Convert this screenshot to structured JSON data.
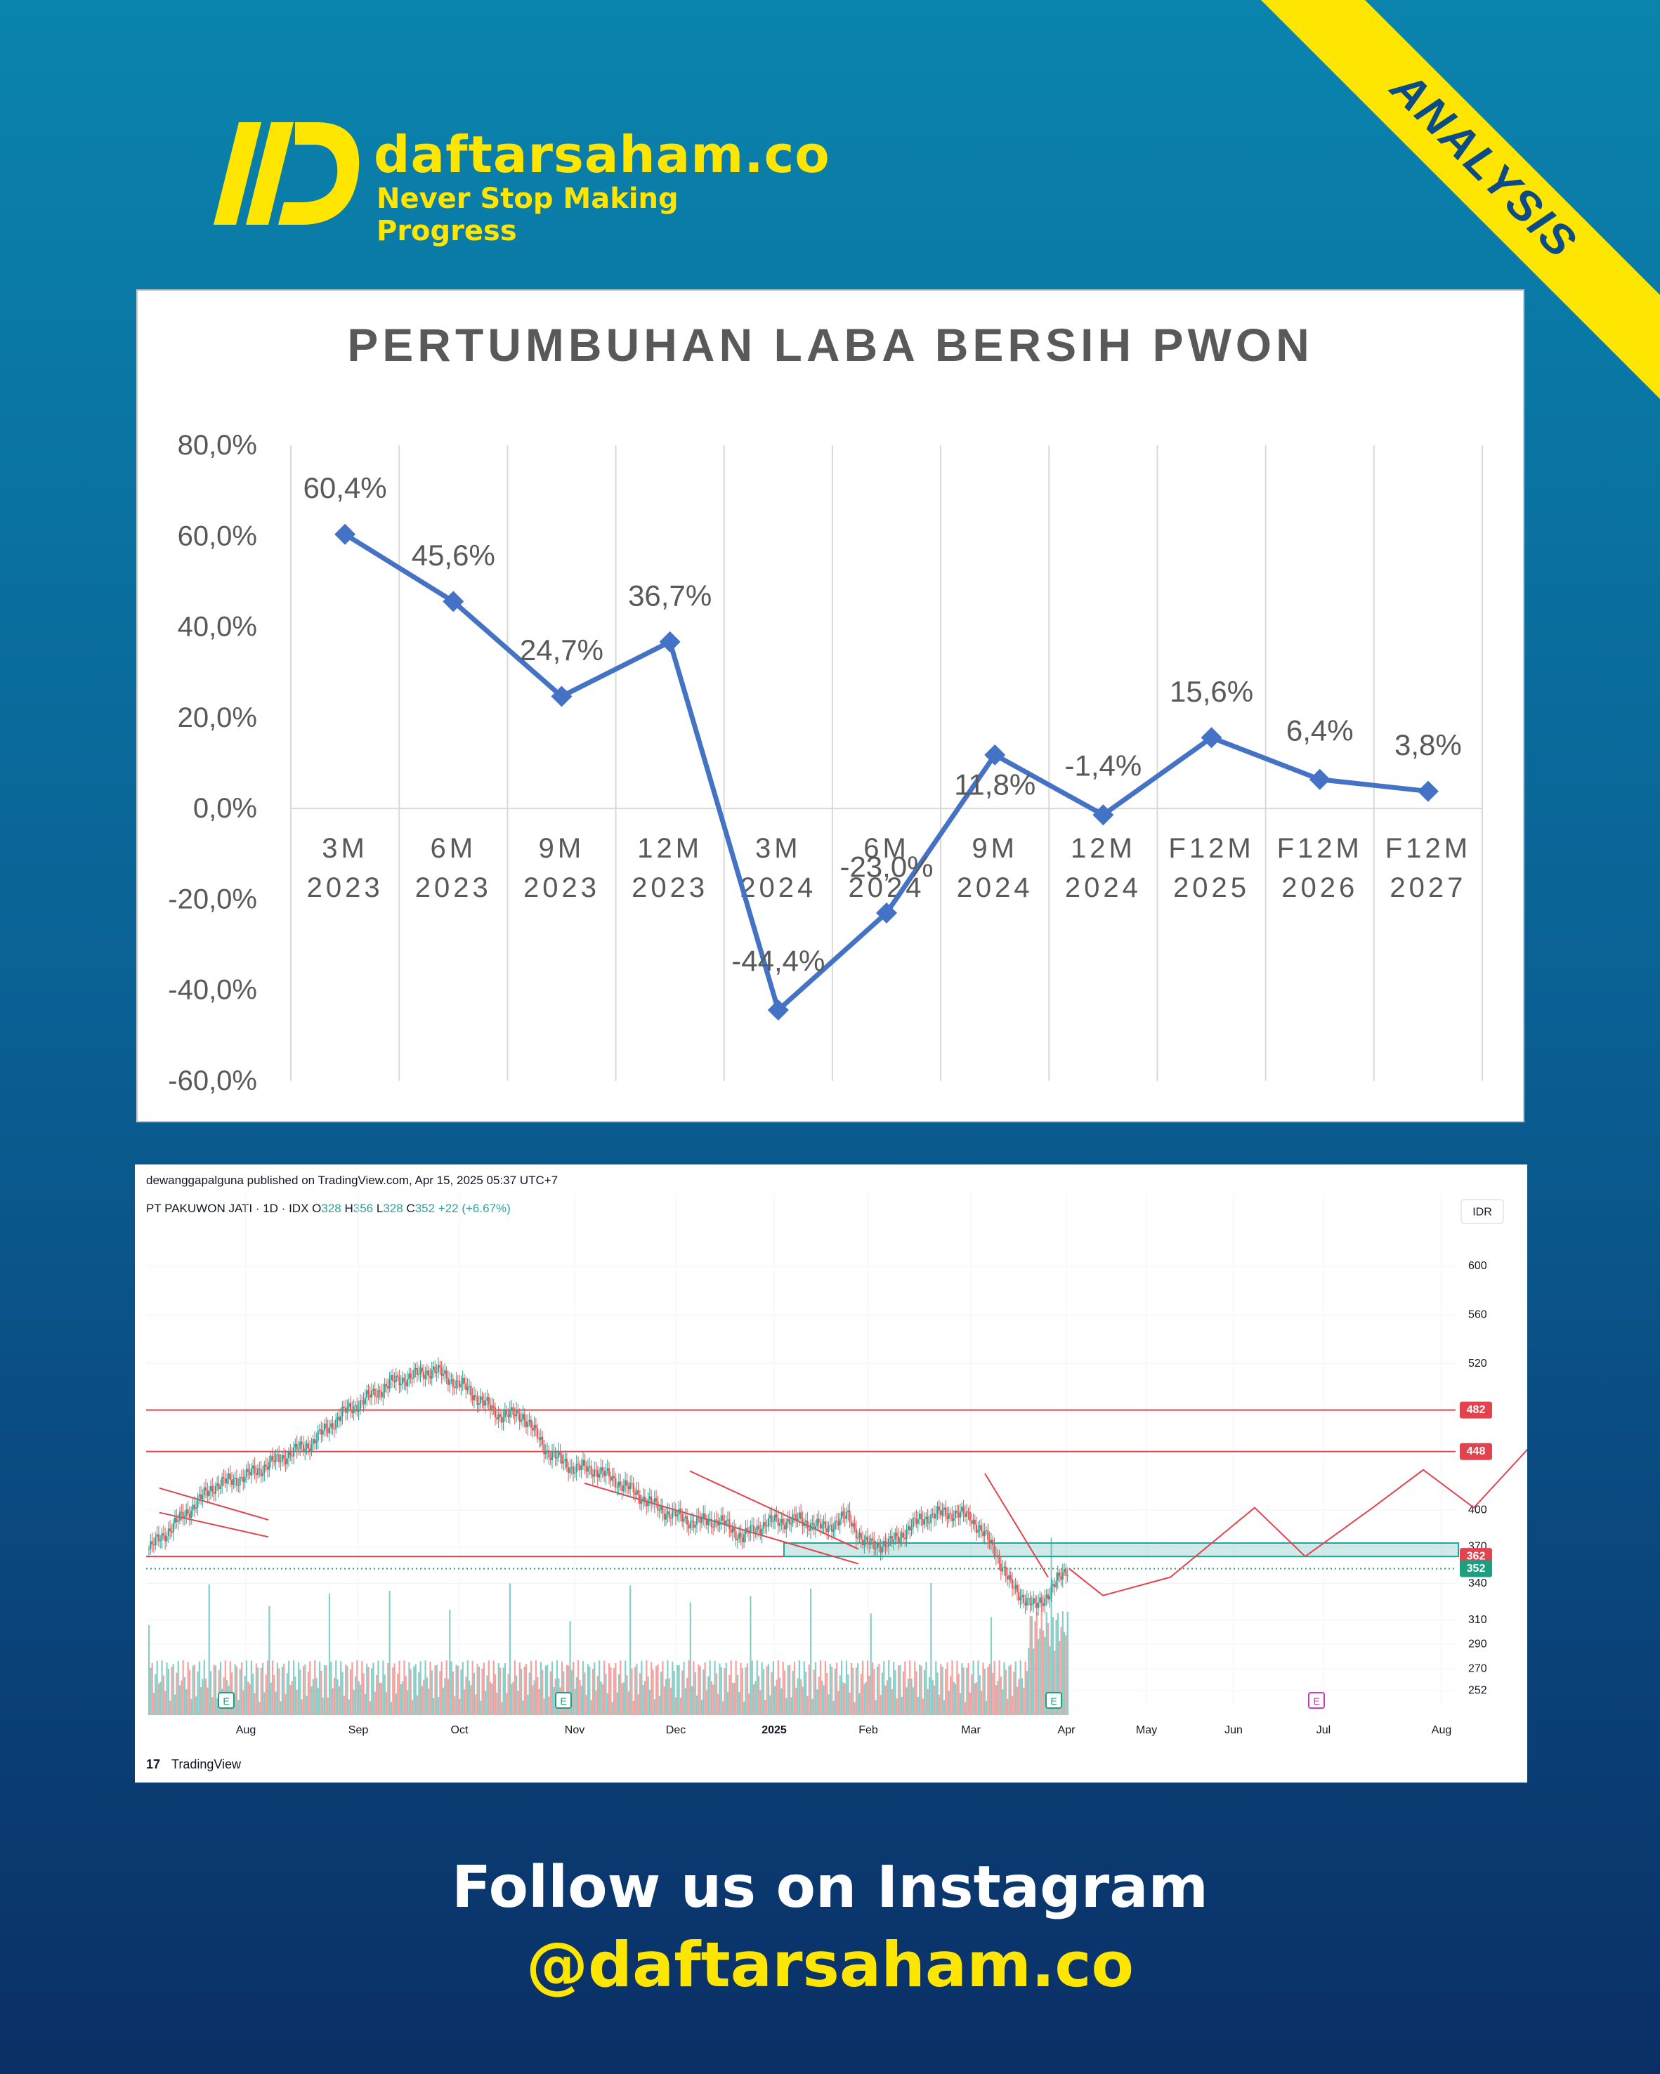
{
  "brand": {
    "name": "daftarsaham.co",
    "tagline": "Never Stop Making Progress",
    "corner_label": "ANALYSIS",
    "yellow": "#ffe600"
  },
  "chart_data": [
    {
      "type": "line",
      "title": "PERTUMBUHAN LABA BERSIH PWON",
      "xlabel": "",
      "ylabel": "",
      "categories": [
        [
          "3M",
          "2023"
        ],
        [
          "6M",
          "2023"
        ],
        [
          "9M",
          "2023"
        ],
        [
          "12M",
          "2023"
        ],
        [
          "3M",
          "2024"
        ],
        [
          "6M",
          "2024"
        ],
        [
          "9M",
          "2024"
        ],
        [
          "12M",
          "2024"
        ],
        [
          "F12M",
          "2025"
        ],
        [
          "F12M",
          "2026"
        ],
        [
          "F12M",
          "2027"
        ]
      ],
      "values": [
        60.4,
        45.6,
        24.7,
        36.7,
        -44.4,
        -23.0,
        11.8,
        -1.4,
        15.6,
        6.4,
        3.8
      ],
      "data_labels": [
        "60,4%",
        "45,6%",
        "24,7%",
        "36,7%",
        "-44,4%",
        "-23,0%",
        "11,8%",
        "-1,4%",
        "15,6%",
        "6,4%",
        "3,8%"
      ],
      "yticks": [
        80,
        60,
        40,
        20,
        0,
        -20,
        -40,
        -60
      ],
      "ytick_labels": [
        "80,0%",
        "60,0%",
        "40,0%",
        "20,0%",
        "0,0%",
        "-20,0%",
        "-40,0%",
        "-60,0%"
      ],
      "ylim": [
        -60,
        80
      ],
      "grid": "vertical",
      "legend": "none",
      "line_color": "#4472c4"
    },
    {
      "type": "candlestick",
      "attribution": "dewanggapalguna published on TradingView.com, Apr 15, 2025 05:37 UTC+7",
      "symbol": "PT PAKUWON JATI · 1D · IDX",
      "ohlc_labels": [
        "O",
        "H",
        "L",
        "C"
      ],
      "ohlc_values": [
        "328",
        "356",
        "328",
        "352"
      ],
      "change": "+22 (+6.67%)",
      "currency": "IDX",
      "currency_axis": "IDR",
      "price_ticks": [
        600,
        560,
        520,
        448,
        400,
        370,
        340,
        310,
        290,
        270,
        252
      ],
      "ylim": [
        240,
        620
      ],
      "x_labels": [
        "Aug",
        "Sep",
        "Oct",
        "Nov",
        "Dec",
        "2025",
        "Feb",
        "Mar",
        "Apr",
        "May",
        "Jun",
        "Jul",
        "Aug"
      ],
      "horizontal_levels": [
        {
          "price": 482,
          "label": "482",
          "color": "#e2434e"
        },
        {
          "price": 448,
          "label": "448",
          "color": "#e2434e"
        },
        {
          "price": 362,
          "label": "362",
          "color": "#e2434e"
        }
      ],
      "last_price": {
        "price": 352,
        "label": "352",
        "color": "#1f9e7f"
      },
      "support_zone": [
        362,
        373
      ],
      "forecast_path": [
        [
          0,
          352
        ],
        [
          2,
          330
        ],
        [
          6,
          345
        ],
        [
          11,
          402
        ],
        [
          14,
          362
        ],
        [
          18,
          402
        ],
        [
          21,
          433
        ],
        [
          24,
          402
        ],
        [
          29,
          477
        ]
      ],
      "earnings_marker": "E",
      "up_color": "#26a69a",
      "down_color": "#ef5350",
      "footer": "TradingView"
    }
  ],
  "footer": {
    "line1": "Follow us on Instagram",
    "line2": "@daftarsaham.co"
  }
}
